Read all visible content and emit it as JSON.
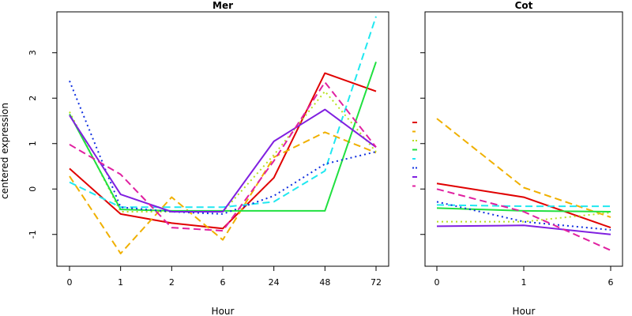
{
  "chart_data": [
    {
      "type": "line",
      "title": "Mer",
      "xlabel": "Hour",
      "ylabel": "centered expression",
      "categories": [
        "0",
        "1",
        "2",
        "6",
        "24",
        "48",
        "72"
      ],
      "ylim": [
        -1.7,
        3.9
      ],
      "yticks": [
        "-1",
        "0",
        "1",
        "2",
        "3"
      ],
      "series": [
        {
          "color": "#e00000",
          "dash": "solid",
          "values": [
            0.45,
            -0.55,
            -0.75,
            -0.87,
            0.25,
            2.55,
            2.15
          ]
        },
        {
          "color": "#f0b000",
          "dash": "dashed",
          "values": [
            0.28,
            -1.42,
            -0.18,
            -1.12,
            0.7,
            1.25,
            0.8
          ]
        },
        {
          "color": "#b8e020",
          "dash": "dotted",
          "values": [
            1.7,
            -0.5,
            -0.5,
            -0.5,
            0.75,
            2.15,
            0.82
          ]
        },
        {
          "color": "#20e040",
          "dash": "solid",
          "values": [
            1.65,
            -0.45,
            -0.48,
            -0.48,
            -0.48,
            -0.48,
            2.8
          ]
        },
        {
          "color": "#20e8f0",
          "dash": "dashed",
          "values": [
            0.15,
            -0.4,
            -0.4,
            -0.4,
            -0.28,
            0.4,
            3.8
          ]
        },
        {
          "color": "#1030e0",
          "dash": "dotted",
          "values": [
            2.38,
            -0.4,
            -0.5,
            -0.55,
            -0.15,
            0.55,
            0.82
          ]
        },
        {
          "color": "#8020e0",
          "dash": "solid",
          "values": [
            1.62,
            -0.12,
            -0.5,
            -0.5,
            1.05,
            1.75,
            0.92
          ]
        },
        {
          "color": "#e020a0",
          "dash": "dashed",
          "values": [
            0.98,
            0.32,
            -0.85,
            -0.92,
            0.62,
            2.35,
            0.92
          ]
        }
      ]
    },
    {
      "type": "line",
      "title": "Cot",
      "xlabel": "Hour",
      "ylabel": "",
      "categories": [
        "0",
        "1",
        "6"
      ],
      "ylim": [
        -1.7,
        3.9
      ],
      "yticks": [
        "-1",
        "0",
        "1",
        "2",
        "3"
      ],
      "series": [
        {
          "color": "#e00000",
          "dash": "solid",
          "values": [
            0.12,
            -0.18,
            -0.85
          ]
        },
        {
          "color": "#f0b000",
          "dash": "dashed",
          "values": [
            1.55,
            0.03,
            -0.62
          ]
        },
        {
          "color": "#b8e020",
          "dash": "dotted",
          "values": [
            -0.72,
            -0.72,
            -0.52
          ]
        },
        {
          "color": "#20e040",
          "dash": "solid",
          "values": [
            -0.42,
            -0.48,
            -0.5
          ]
        },
        {
          "color": "#20e8f0",
          "dash": "dashed",
          "values": [
            -0.35,
            -0.38,
            -0.38
          ]
        },
        {
          "color": "#1030e0",
          "dash": "dotted",
          "values": [
            -0.28,
            -0.72,
            -0.9
          ]
        },
        {
          "color": "#8020e0",
          "dash": "solid",
          "values": [
            -0.82,
            -0.8,
            -1.0
          ]
        },
        {
          "color": "#e020a0",
          "dash": "dashed",
          "values": [
            0.0,
            -0.5,
            -1.35
          ]
        }
      ]
    }
  ]
}
